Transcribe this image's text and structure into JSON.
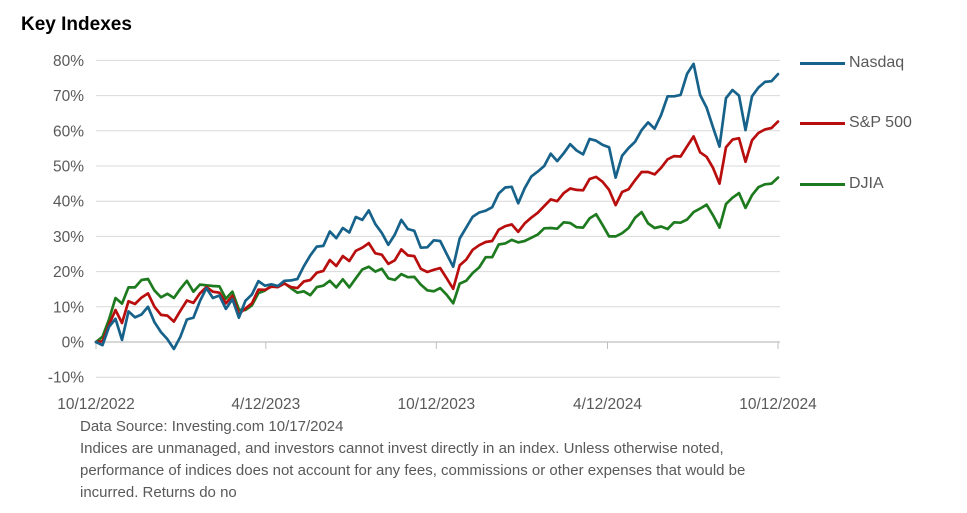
{
  "title": "Key Indexes",
  "footer": {
    "line1": "Data Source: Investing.com 10/17/2024",
    "line2": "Indices are unmanaged, and investors cannot invest directly in an index. Unless otherwise noted,",
    "line3": "performance of indices does not account for any fees, commissions or other expenses that would be",
    "line4": "incurred. Returns do no"
  },
  "colors": {
    "nasdaq": "#17628a",
    "sp500": "#b90e0e",
    "djia": "#1e7a1e",
    "axis_text": "#595959",
    "gridline": "#d9d9d9",
    "axis_line": "#bfbfbf"
  },
  "chart_data": {
    "type": "line",
    "title": "Key Indexes",
    "xlabel": "",
    "ylabel": "",
    "y_unit": "%",
    "ylim": [
      -10,
      80
    ],
    "grid": true,
    "legend_position": "right",
    "x_note": "values are % change since 10/12/2022, sampled weekly 10/12/2022 - 10/11/2024",
    "x_ticks": [
      {
        "pos": 0.0,
        "label": "10/12/2022"
      },
      {
        "pos": 0.249,
        "label": "4/12/2023"
      },
      {
        "pos": 0.499,
        "label": "10/12/2023"
      },
      {
        "pos": 0.75,
        "label": "4/12/2024"
      },
      {
        "pos": 1.0,
        "label": "10/12/2024"
      }
    ],
    "y_ticks": [
      {
        "value": 80,
        "label": "80%"
      },
      {
        "value": 70,
        "label": "70%"
      },
      {
        "value": 60,
        "label": "60%"
      },
      {
        "value": 50,
        "label": "50%"
      },
      {
        "value": 40,
        "label": "40%"
      },
      {
        "value": 30,
        "label": "30%"
      },
      {
        "value": 20,
        "label": "20%"
      },
      {
        "value": 10,
        "label": "10%"
      },
      {
        "value": 0,
        "label": "0%"
      },
      {
        "value": -10,
        "label": "-10%"
      }
    ],
    "series": [
      {
        "name": "Nasdaq",
        "color": "#17628a",
        "values": [
          0,
          -0.9,
          4.3,
          6.6,
          0.6,
          8.7,
          7.0,
          7.8,
          10.0,
          5.6,
          2.8,
          0.8,
          -2.0,
          1.5,
          6.4,
          6.9,
          11.6,
          15.3,
          12.5,
          13.2,
          9.4,
          12.2,
          6.9,
          11.7,
          13.5,
          17.3,
          16.0,
          16.4,
          15.9,
          17.4,
          17.5,
          17.9,
          21.5,
          24.6,
          27.1,
          27.3,
          31.4,
          29.5,
          32.4,
          31.1,
          35.5,
          34.7,
          37.4,
          33.5,
          31.0,
          27.6,
          30.5,
          34.7,
          32.1,
          31.6,
          26.8,
          26.9,
          28.9,
          28.7,
          25.0,
          21.4,
          29.4,
          32.5,
          35.6,
          36.8,
          37.3,
          38.3,
          42.2,
          43.9,
          44.1,
          39.4,
          43.7,
          47.0,
          48.4,
          50.0,
          53.5,
          51.4,
          53.6,
          56.2,
          54.4,
          53.3,
          57.7,
          57.2,
          56.0,
          55.3,
          46.7,
          52.9,
          55.1,
          56.9,
          60.2,
          62.4,
          60.6,
          64.5,
          69.8,
          69.8,
          70.2,
          76.2,
          79.0,
          70.2,
          66.6,
          61.0,
          55.5,
          69.3,
          71.6,
          70.0,
          60.2,
          69.8,
          72.3,
          73.9,
          74.1,
          76.1
        ]
      },
      {
        "name": "S&P 500",
        "color": "#b90e0e",
        "values": [
          0,
          0.2,
          4.9,
          9.1,
          5.4,
          11.6,
          10.8,
          12.6,
          13.8,
          10.0,
          7.7,
          7.5,
          5.8,
          8.9,
          11.8,
          11.1,
          13.8,
          15.6,
          14.3,
          14.0,
          11.0,
          13.1,
          8.0,
          9.5,
          11.0,
          14.9,
          14.8,
          15.7,
          15.6,
          16.6,
          15.6,
          15.3,
          17.2,
          17.6,
          19.7,
          20.2,
          23.3,
          21.6,
          24.4,
          23.0,
          25.9,
          26.8,
          28.1,
          25.2,
          24.8,
          22.2,
          23.2,
          26.3,
          24.6,
          24.4,
          20.8,
          19.9,
          20.5,
          21.0,
          18.1,
          15.1,
          21.8,
          23.4,
          26.2,
          27.5,
          28.4,
          28.7,
          31.9,
          32.9,
          33.4,
          31.3,
          33.7,
          35.3,
          36.7,
          38.6,
          40.5,
          40.0,
          42.3,
          43.6,
          43.2,
          43.1,
          46.3,
          46.9,
          45.5,
          43.2,
          38.9,
          42.6,
          43.4,
          46.0,
          48.3,
          48.3,
          47.6,
          49.5,
          51.9,
          52.8,
          52.7,
          55.6,
          58.4,
          53.9,
          52.6,
          49.5,
          45.0,
          55.3,
          57.5,
          57.9,
          51.2,
          57.3,
          59.4,
          60.4,
          60.8,
          62.6
        ]
      },
      {
        "name": "DJIA",
        "color": "#1e7a1e",
        "values": [
          0,
          1.5,
          6.4,
          12.5,
          10.9,
          15.5,
          15.5,
          17.6,
          17.9,
          14.6,
          12.7,
          13.7,
          12.5,
          15.1,
          17.4,
          14.3,
          16.3,
          16.1,
          15.9,
          15.8,
          12.3,
          14.3,
          9.2,
          9.1,
          10.4,
          13.9,
          14.6,
          16.0,
          15.7,
          16.7,
          15.3,
          14.0,
          14.4,
          13.3,
          15.6,
          16.0,
          17.4,
          15.5,
          17.8,
          15.5,
          18.1,
          20.6,
          21.4,
          20.0,
          20.8,
          18.1,
          17.6,
          19.3,
          18.4,
          18.5,
          16.3,
          14.7,
          14.4,
          15.3,
          13.4,
          11.0,
          16.6,
          17.4,
          19.6,
          21.2,
          24.1,
          24.1,
          27.7,
          28.0,
          29.0,
          28.3,
          28.7,
          29.6,
          30.5,
          32.3,
          32.4,
          32.2,
          34.0,
          33.8,
          32.6,
          32.5,
          35.1,
          36.3,
          33.2,
          30.0,
          30.0,
          30.9,
          32.4,
          35.3,
          36.9,
          33.7,
          32.4,
          32.8,
          32.1,
          34.0,
          33.9,
          34.8,
          36.9,
          37.9,
          39.0,
          36.0,
          32.5,
          39.2,
          41.0,
          42.3,
          38.1,
          41.7,
          44.0,
          44.8,
          45.0,
          46.7
        ]
      }
    ]
  }
}
